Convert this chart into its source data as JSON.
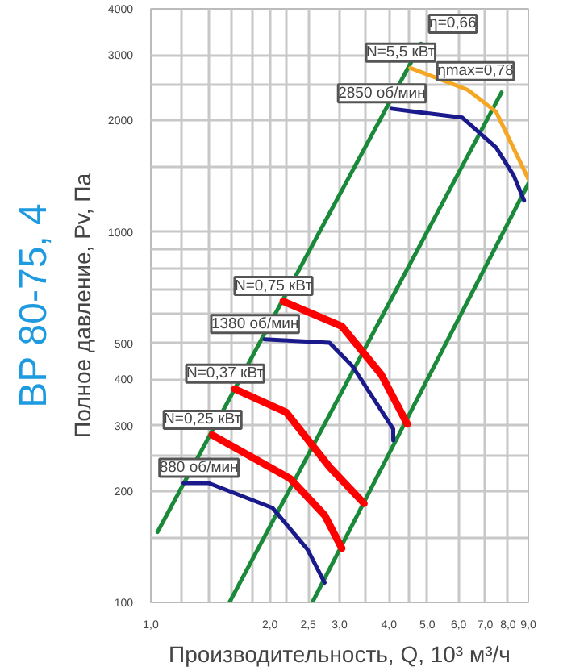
{
  "chart_data": {
    "type": "line",
    "title": "ВР 80-75, 4",
    "xlabel": "Производительность, Q, 10³ м³/ч",
    "ylabel": "Полное давление, Pv, Па",
    "log": "xy",
    "grid": true,
    "marker": "none",
    "line_style": "solid",
    "xlim": [
      1.0,
      9.0
    ],
    "ylim": [
      100,
      4000
    ],
    "xticks": [
      {
        "value": 1.0,
        "label": "1,0"
      },
      {
        "value": 1.2,
        "label": null
      },
      {
        "value": 1.4,
        "label": null
      },
      {
        "value": 1.6,
        "label": null
      },
      {
        "value": 1.8,
        "label": null
      },
      {
        "value": 2.0,
        "label": "2,0"
      },
      {
        "value": 2.2,
        "label": null
      },
      {
        "value": 2.5,
        "label": "2,5"
      },
      {
        "value": 3.0,
        "label": "3,0"
      },
      {
        "value": 3.5,
        "label": null
      },
      {
        "value": 4.0,
        "label": "4,0"
      },
      {
        "value": 4.5,
        "label": null
      },
      {
        "value": 5.0,
        "label": "5,0"
      },
      {
        "value": 6.0,
        "label": "6,0"
      },
      {
        "value": 7.0,
        "label": "7,0"
      },
      {
        "value": 8.0,
        "label": "8,0"
      },
      {
        "value": 9.0,
        "label": "9,0"
      }
    ],
    "yticks": [
      100,
      {
        "value": 150,
        "label": null
      },
      200,
      {
        "value": 250,
        "label": null
      },
      300,
      400,
      500,
      {
        "value": 600,
        "label": null
      },
      {
        "value": 700,
        "label": null
      },
      {
        "value": 800,
        "label": null
      },
      {
        "value": 900,
        "label": null
      },
      1000,
      {
        "value": 1500,
        "label": null
      },
      2000,
      {
        "value": 2500,
        "label": null
      },
      3000,
      4000
    ],
    "series": [
      {
        "color": "#1a8a3a",
        "x": [
          1.04,
          4.82
        ],
        "values": [
          155,
          3220
        ]
      },
      {
        "color": "#1a8a3a",
        "x": [
          1.58,
          7.7
        ],
        "values": [
          100,
          2380
        ]
      },
      {
        "color": "#1a8a3a",
        "x": [
          2.56,
          9.0
        ],
        "values": [
          100,
          1350
        ]
      },
      {
        "color": "#1a1a8c",
        "x": [
          4.06,
          6.13,
          7.46,
          8.27,
          8.78
        ],
        "values": [
          2150,
          2035,
          1690,
          1418,
          1216
        ]
      },
      {
        "color": "#1a1a8c",
        "x": [
          1.94,
          2.83,
          3.23,
          4.1,
          4.1
        ],
        "values": [
          513,
          502,
          435,
          294,
          274
        ]
      },
      {
        "color": "#1a1a8c",
        "x": [
          1.21,
          1.4,
          2.03,
          2.49,
          2.75
        ],
        "values": [
          210,
          210,
          180,
          139,
          113
        ]
      },
      {
        "color": "#f5a623",
        "x": [
          4.53,
          6.32,
          7.46,
          9.0
        ],
        "values": [
          2770,
          2420,
          2110,
          1390
        ]
      },
      {
        "color": "#ff0000",
        "x": [
          2.16,
          3.04,
          3.82,
          4.45
        ],
        "values": [
          650,
          556,
          413,
          303
        ]
      },
      {
        "color": "#ff0000",
        "x": [
          1.63,
          2.2,
          2.83,
          3.46
        ],
        "values": [
          377,
          326,
          232,
          185
        ]
      },
      {
        "color": "#ff0000",
        "x": [
          1.43,
          2.25,
          2.75,
          3.04
        ],
        "values": [
          283,
          216,
          172,
          140
        ]
      }
    ],
    "annotations": [
      "η=0,66",
      {
        "text": "N=5,5 кВт",
        "x": 4.53,
        "y": 2770
      },
      "ηmax=0,78",
      {
        "text": "2850 об/мин",
        "x": 4.06,
        "y": 2150
      },
      {
        "text": "N=0,75 кВт",
        "x": 2.16,
        "y": 650
      },
      {
        "text": "1380 об/мин",
        "x": 1.94,
        "y": 513
      },
      {
        "text": "N=0,37 кВт",
        "x": 1.63,
        "y": 377
      },
      {
        "text": "N=0,25 кВт",
        "x": 1.43,
        "y": 283
      },
      {
        "text": "880 об/мин",
        "x": 1.4,
        "y": 210
      }
    ]
  }
}
